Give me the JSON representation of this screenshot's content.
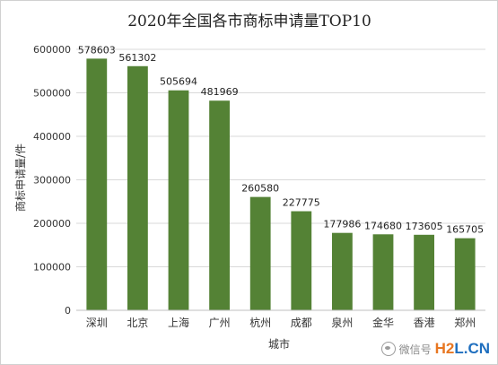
{
  "chart_data": {
    "type": "bar",
    "title": "2020年全国各市商标申请量TOP10",
    "xlabel": "城市",
    "ylabel": "商标申请量/件",
    "categories": [
      "深圳",
      "北京",
      "上海",
      "广州",
      "杭州",
      "成都",
      "泉州",
      "金华",
      "香港",
      "郑州"
    ],
    "values": [
      578603,
      561302,
      505694,
      481969,
      260580,
      227775,
      177986,
      174680,
      173605,
      165705
    ],
    "ylim": [
      0,
      600000
    ],
    "yticks": [
      0,
      100000,
      200000,
      300000,
      400000,
      500000,
      600000
    ],
    "grid": true,
    "legend": "none",
    "bar_color": "#548235",
    "grid_color": "#d9d9d9"
  },
  "watermark": {
    "text": "微信号",
    "logo_h2": "H2",
    "logo_l": "L",
    "logo_dot": ".",
    "logo_cn": "CN"
  }
}
